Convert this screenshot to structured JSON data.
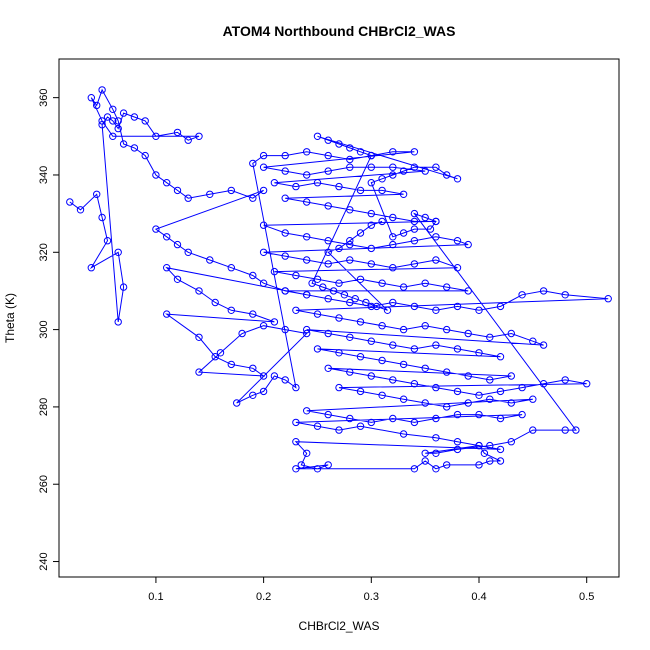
{
  "chart_data": {
    "type": "scatter",
    "title": "ATOM4 Northbound CHBrCl2_WAS",
    "xlabel": "CHBrCl2_WAS",
    "ylabel": "Theta (K)",
    "xlim": [
      0.01,
      0.53
    ],
    "ylim": [
      236,
      370
    ],
    "xticks": [
      0.1,
      0.2,
      0.3,
      0.4,
      0.5
    ],
    "yticks": [
      240,
      260,
      280,
      300,
      320,
      340,
      360
    ],
    "grid": false,
    "series_color": "#0000ff",
    "marker": "open-circle",
    "connected": true,
    "series": [
      {
        "points": [
          [
            0.02,
            333
          ],
          [
            0.03,
            331
          ],
          [
            0.045,
            335
          ],
          [
            0.05,
            329
          ],
          [
            0.055,
            323
          ],
          [
            0.04,
            316
          ],
          [
            0.065,
            320
          ],
          [
            0.07,
            311
          ],
          [
            0.065,
            302
          ],
          [
            0.05,
            353
          ],
          [
            0.055,
            355
          ],
          [
            0.06,
            354
          ],
          [
            0.065,
            352
          ],
          [
            0.07,
            356
          ],
          [
            0.08,
            355
          ],
          [
            0.09,
            354
          ],
          [
            0.1,
            350
          ],
          [
            0.12,
            351
          ],
          [
            0.13,
            349
          ],
          [
            0.14,
            350
          ],
          [
            0.06,
            350
          ],
          [
            0.05,
            354
          ],
          [
            0.04,
            360
          ],
          [
            0.045,
            358
          ],
          [
            0.05,
            362
          ],
          [
            0.06,
            357
          ],
          [
            0.065,
            354
          ],
          [
            0.07,
            348
          ],
          [
            0.08,
            347
          ],
          [
            0.09,
            345
          ],
          [
            0.1,
            340
          ],
          [
            0.11,
            338
          ],
          [
            0.12,
            336
          ],
          [
            0.13,
            334
          ],
          [
            0.15,
            335
          ],
          [
            0.17,
            336
          ],
          [
            0.19,
            334
          ],
          [
            0.2,
            336
          ],
          [
            0.1,
            326
          ],
          [
            0.11,
            324
          ],
          [
            0.12,
            322
          ],
          [
            0.13,
            320
          ],
          [
            0.15,
            318
          ],
          [
            0.17,
            316
          ],
          [
            0.19,
            314
          ],
          [
            0.2,
            312
          ],
          [
            0.22,
            310
          ],
          [
            0.24,
            309
          ],
          [
            0.11,
            316
          ],
          [
            0.12,
            313
          ],
          [
            0.14,
            310
          ],
          [
            0.155,
            307
          ],
          [
            0.17,
            305
          ],
          [
            0.19,
            304
          ],
          [
            0.21,
            302
          ],
          [
            0.11,
            304
          ],
          [
            0.14,
            298
          ],
          [
            0.155,
            293
          ],
          [
            0.17,
            291
          ],
          [
            0.19,
            290
          ],
          [
            0.2,
            288
          ],
          [
            0.14,
            289
          ],
          [
            0.16,
            294
          ],
          [
            0.18,
            299
          ],
          [
            0.2,
            301
          ],
          [
            0.22,
            300
          ],
          [
            0.24,
            299
          ],
          [
            0.175,
            281
          ],
          [
            0.19,
            283
          ],
          [
            0.2,
            284
          ],
          [
            0.21,
            288
          ],
          [
            0.22,
            287
          ],
          [
            0.23,
            285
          ],
          [
            0.19,
            343
          ],
          [
            0.2,
            345
          ],
          [
            0.22,
            345
          ],
          [
            0.24,
            346
          ],
          [
            0.26,
            345
          ],
          [
            0.28,
            344
          ],
          [
            0.3,
            345
          ],
          [
            0.32,
            346
          ],
          [
            0.34,
            346
          ],
          [
            0.2,
            342
          ],
          [
            0.22,
            341
          ],
          [
            0.24,
            340
          ],
          [
            0.26,
            341
          ],
          [
            0.28,
            342
          ],
          [
            0.3,
            342
          ],
          [
            0.32,
            342
          ],
          [
            0.35,
            341
          ],
          [
            0.21,
            338
          ],
          [
            0.23,
            337
          ],
          [
            0.25,
            338
          ],
          [
            0.27,
            337
          ],
          [
            0.29,
            336
          ],
          [
            0.31,
            336
          ],
          [
            0.33,
            335
          ],
          [
            0.22,
            334
          ],
          [
            0.24,
            333
          ],
          [
            0.26,
            332
          ],
          [
            0.28,
            331
          ],
          [
            0.3,
            330
          ],
          [
            0.32,
            329
          ],
          [
            0.34,
            328
          ],
          [
            0.36,
            328
          ],
          [
            0.2,
            327
          ],
          [
            0.22,
            325
          ],
          [
            0.24,
            324
          ],
          [
            0.26,
            323
          ],
          [
            0.28,
            322
          ],
          [
            0.3,
            321
          ],
          [
            0.32,
            322
          ],
          [
            0.34,
            323
          ],
          [
            0.36,
            324
          ],
          [
            0.38,
            323
          ],
          [
            0.39,
            322
          ],
          [
            0.2,
            320
          ],
          [
            0.22,
            319
          ],
          [
            0.24,
            318
          ],
          [
            0.26,
            317
          ],
          [
            0.28,
            318
          ],
          [
            0.3,
            317
          ],
          [
            0.32,
            316
          ],
          [
            0.34,
            317
          ],
          [
            0.36,
            318
          ],
          [
            0.38,
            316
          ],
          [
            0.21,
            315
          ],
          [
            0.23,
            314
          ],
          [
            0.25,
            313
          ],
          [
            0.27,
            312
          ],
          [
            0.29,
            313
          ],
          [
            0.31,
            312
          ],
          [
            0.33,
            311
          ],
          [
            0.35,
            312
          ],
          [
            0.37,
            311
          ],
          [
            0.39,
            310
          ],
          [
            0.22,
            310
          ],
          [
            0.24,
            309
          ],
          [
            0.26,
            308
          ],
          [
            0.28,
            307
          ],
          [
            0.3,
            306
          ],
          [
            0.32,
            307
          ],
          [
            0.34,
            306
          ],
          [
            0.36,
            305
          ],
          [
            0.38,
            306
          ],
          [
            0.4,
            305
          ],
          [
            0.42,
            306
          ],
          [
            0.44,
            309
          ],
          [
            0.46,
            310
          ],
          [
            0.48,
            309
          ],
          [
            0.52,
            308
          ],
          [
            0.23,
            305
          ],
          [
            0.25,
            304
          ],
          [
            0.27,
            303
          ],
          [
            0.29,
            302
          ],
          [
            0.31,
            301
          ],
          [
            0.33,
            300
          ],
          [
            0.35,
            301
          ],
          [
            0.37,
            300
          ],
          [
            0.39,
            299
          ],
          [
            0.41,
            298
          ],
          [
            0.43,
            299
          ],
          [
            0.45,
            297
          ],
          [
            0.46,
            296
          ],
          [
            0.24,
            300
          ],
          [
            0.26,
            299
          ],
          [
            0.28,
            298
          ],
          [
            0.3,
            297
          ],
          [
            0.32,
            296
          ],
          [
            0.34,
            295
          ],
          [
            0.36,
            296
          ],
          [
            0.38,
            295
          ],
          [
            0.4,
            294
          ],
          [
            0.42,
            293
          ],
          [
            0.25,
            295
          ],
          [
            0.27,
            294
          ],
          [
            0.29,
            293
          ],
          [
            0.31,
            292
          ],
          [
            0.33,
            291
          ],
          [
            0.35,
            290
          ],
          [
            0.37,
            289
          ],
          [
            0.39,
            288
          ],
          [
            0.41,
            287
          ],
          [
            0.43,
            288
          ],
          [
            0.26,
            290
          ],
          [
            0.28,
            289
          ],
          [
            0.3,
            288
          ],
          [
            0.32,
            287
          ],
          [
            0.34,
            286
          ],
          [
            0.36,
            285
          ],
          [
            0.38,
            284
          ],
          [
            0.4,
            283
          ],
          [
            0.42,
            284
          ],
          [
            0.44,
            285
          ],
          [
            0.46,
            286
          ],
          [
            0.48,
            287
          ],
          [
            0.5,
            286
          ],
          [
            0.27,
            285
          ],
          [
            0.29,
            284
          ],
          [
            0.31,
            283
          ],
          [
            0.33,
            282
          ],
          [
            0.35,
            281
          ],
          [
            0.37,
            280
          ],
          [
            0.39,
            281
          ],
          [
            0.41,
            282
          ],
          [
            0.43,
            281
          ],
          [
            0.45,
            282
          ],
          [
            0.24,
            279
          ],
          [
            0.26,
            278
          ],
          [
            0.28,
            277
          ],
          [
            0.3,
            276
          ],
          [
            0.32,
            277
          ],
          [
            0.34,
            276
          ],
          [
            0.36,
            277
          ],
          [
            0.38,
            278
          ],
          [
            0.4,
            278
          ],
          [
            0.42,
            277
          ],
          [
            0.44,
            278
          ],
          [
            0.23,
            276
          ],
          [
            0.25,
            275
          ],
          [
            0.27,
            274
          ],
          [
            0.29,
            275
          ],
          [
            0.33,
            273
          ],
          [
            0.36,
            272
          ],
          [
            0.38,
            271
          ],
          [
            0.4,
            270
          ],
          [
            0.42,
            269
          ],
          [
            0.23,
            271
          ],
          [
            0.24,
            268
          ],
          [
            0.235,
            265
          ],
          [
            0.25,
            264
          ],
          [
            0.26,
            265
          ],
          [
            0.23,
            264
          ],
          [
            0.34,
            264
          ],
          [
            0.35,
            266
          ],
          [
            0.36,
            264
          ],
          [
            0.37,
            265
          ],
          [
            0.4,
            265
          ],
          [
            0.41,
            266
          ],
          [
            0.42,
            266
          ],
          [
            0.405,
            268
          ],
          [
            0.4,
            270
          ],
          [
            0.35,
            268
          ],
          [
            0.36,
            268
          ],
          [
            0.38,
            269
          ],
          [
            0.41,
            270
          ],
          [
            0.43,
            271
          ],
          [
            0.45,
            274
          ],
          [
            0.48,
            274
          ],
          [
            0.49,
            274
          ],
          [
            0.34,
            330
          ],
          [
            0.35,
            329
          ],
          [
            0.36,
            328
          ],
          [
            0.355,
            326
          ],
          [
            0.34,
            326
          ],
          [
            0.33,
            325
          ],
          [
            0.32,
            324
          ],
          [
            0.3,
            338
          ],
          [
            0.31,
            339
          ],
          [
            0.32,
            340
          ],
          [
            0.33,
            341
          ],
          [
            0.34,
            342
          ],
          [
            0.36,
            342
          ],
          [
            0.37,
            340
          ],
          [
            0.38,
            339
          ],
          [
            0.25,
            350
          ],
          [
            0.26,
            349
          ],
          [
            0.27,
            348
          ],
          [
            0.28,
            347
          ],
          [
            0.29,
            346
          ],
          [
            0.3,
            345
          ],
          [
            0.245,
            312
          ],
          [
            0.255,
            311
          ],
          [
            0.265,
            310
          ],
          [
            0.275,
            309
          ],
          [
            0.285,
            308
          ],
          [
            0.295,
            307
          ],
          [
            0.305,
            306
          ],
          [
            0.315,
            305
          ],
          [
            0.26,
            320
          ],
          [
            0.27,
            321
          ],
          [
            0.28,
            323
          ],
          [
            0.29,
            325
          ],
          [
            0.3,
            327
          ],
          [
            0.31,
            328
          ]
        ]
      }
    ]
  }
}
